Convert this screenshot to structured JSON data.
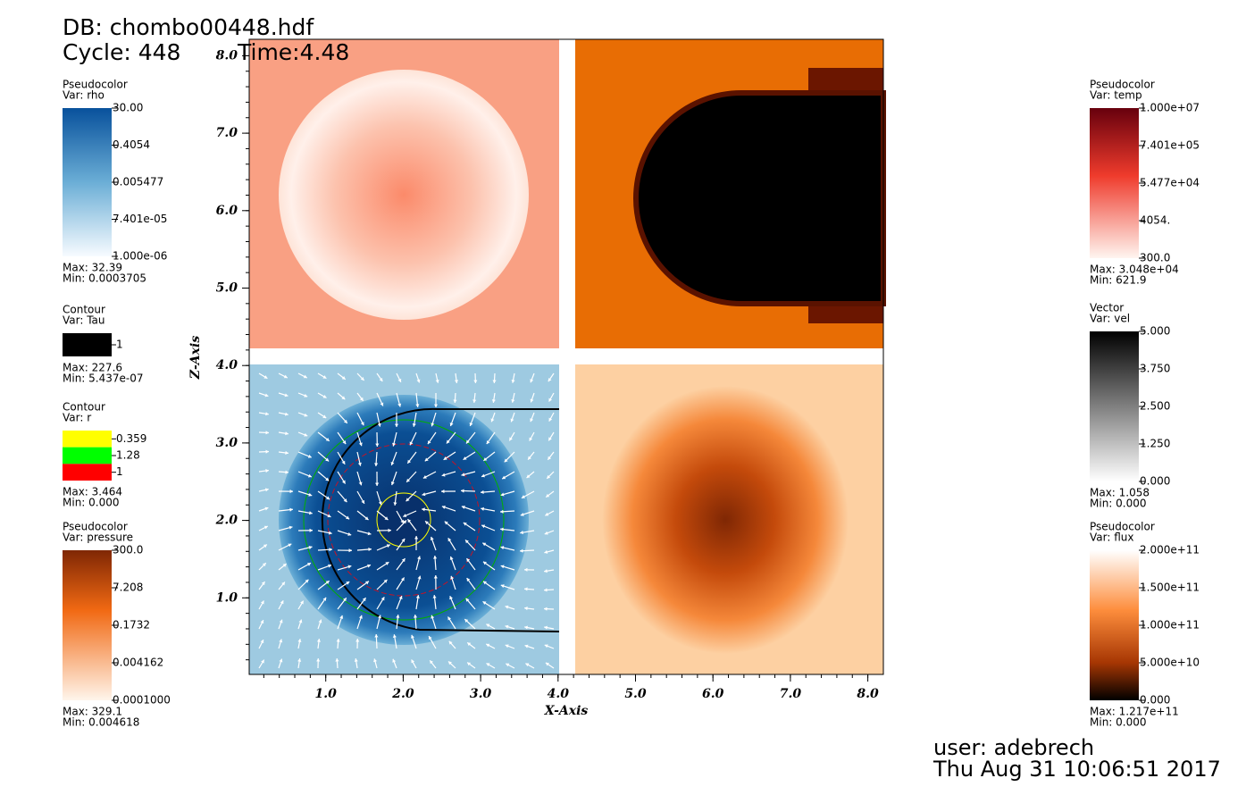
{
  "header": {
    "db": "DB: chombo00448.hdf",
    "cycle": "Cycle: 448",
    "time": "Time:4.48"
  },
  "legends_left": [
    {
      "title": "Pseudocolor",
      "var": "Var: rho",
      "ticks": [
        "30.00",
        "0.4054",
        "0.005477",
        "7.401e-05",
        "1.000e-06"
      ],
      "max": "Max:  32.39",
      "min": "Min:  0.0003705"
    },
    {
      "title": "Contour",
      "var": "Var: Tau",
      "ticks": [
        "1"
      ],
      "max": "Max:  227.6",
      "min": "Min:  5.437e-07"
    },
    {
      "title": "Contour",
      "var": "Var: r",
      "ticks": [
        "0.359",
        "1.28",
        "1"
      ],
      "max": "Max:  3.464",
      "min": "Min:  0.000"
    },
    {
      "title": "Pseudocolor",
      "var": "Var: pressure",
      "ticks": [
        "300.0",
        "7.208",
        "0.1732",
        "0.004162",
        "0.0001000"
      ],
      "max": "Max:  329.1",
      "min": "Min:  0.004618"
    }
  ],
  "legends_right": [
    {
      "title": "Pseudocolor",
      "var": "Var: temp",
      "ticks": [
        "1.000e+07",
        "7.401e+05",
        "5.477e+04",
        "4054.",
        "300.0"
      ],
      "max": "Max:  3.048e+04",
      "min": "Min:  621.9"
    },
    {
      "title": "Vector",
      "var": "Var: vel",
      "ticks": [
        "5.000",
        "3.750",
        "2.500",
        "1.250",
        "0.000"
      ],
      "max": "Max:  1.058",
      "min": "Min:  0.000"
    },
    {
      "title": "Pseudocolor",
      "var": "Var: flux",
      "ticks": [
        "2.000e+11",
        "1.500e+11",
        "1.000e+11",
        "5.000e+10",
        "0.000"
      ],
      "max": "Max:  1.217e+11",
      "min": "Min:  0.000"
    }
  ],
  "axes": {
    "x_title": "X-Axis",
    "y_title": "Z-Axis",
    "x_ticks": [
      "1.0",
      "2.0",
      "3.0",
      "4.0",
      "5.0",
      "6.0",
      "7.0",
      "8.0"
    ],
    "y_ticks": [
      "1.0",
      "2.0",
      "3.0",
      "4.0",
      "5.0",
      "6.0",
      "7.0",
      "8.0"
    ]
  },
  "footer": {
    "user": "user: adebrech",
    "date": "Thu Aug 31 10:06:51 2017"
  }
}
